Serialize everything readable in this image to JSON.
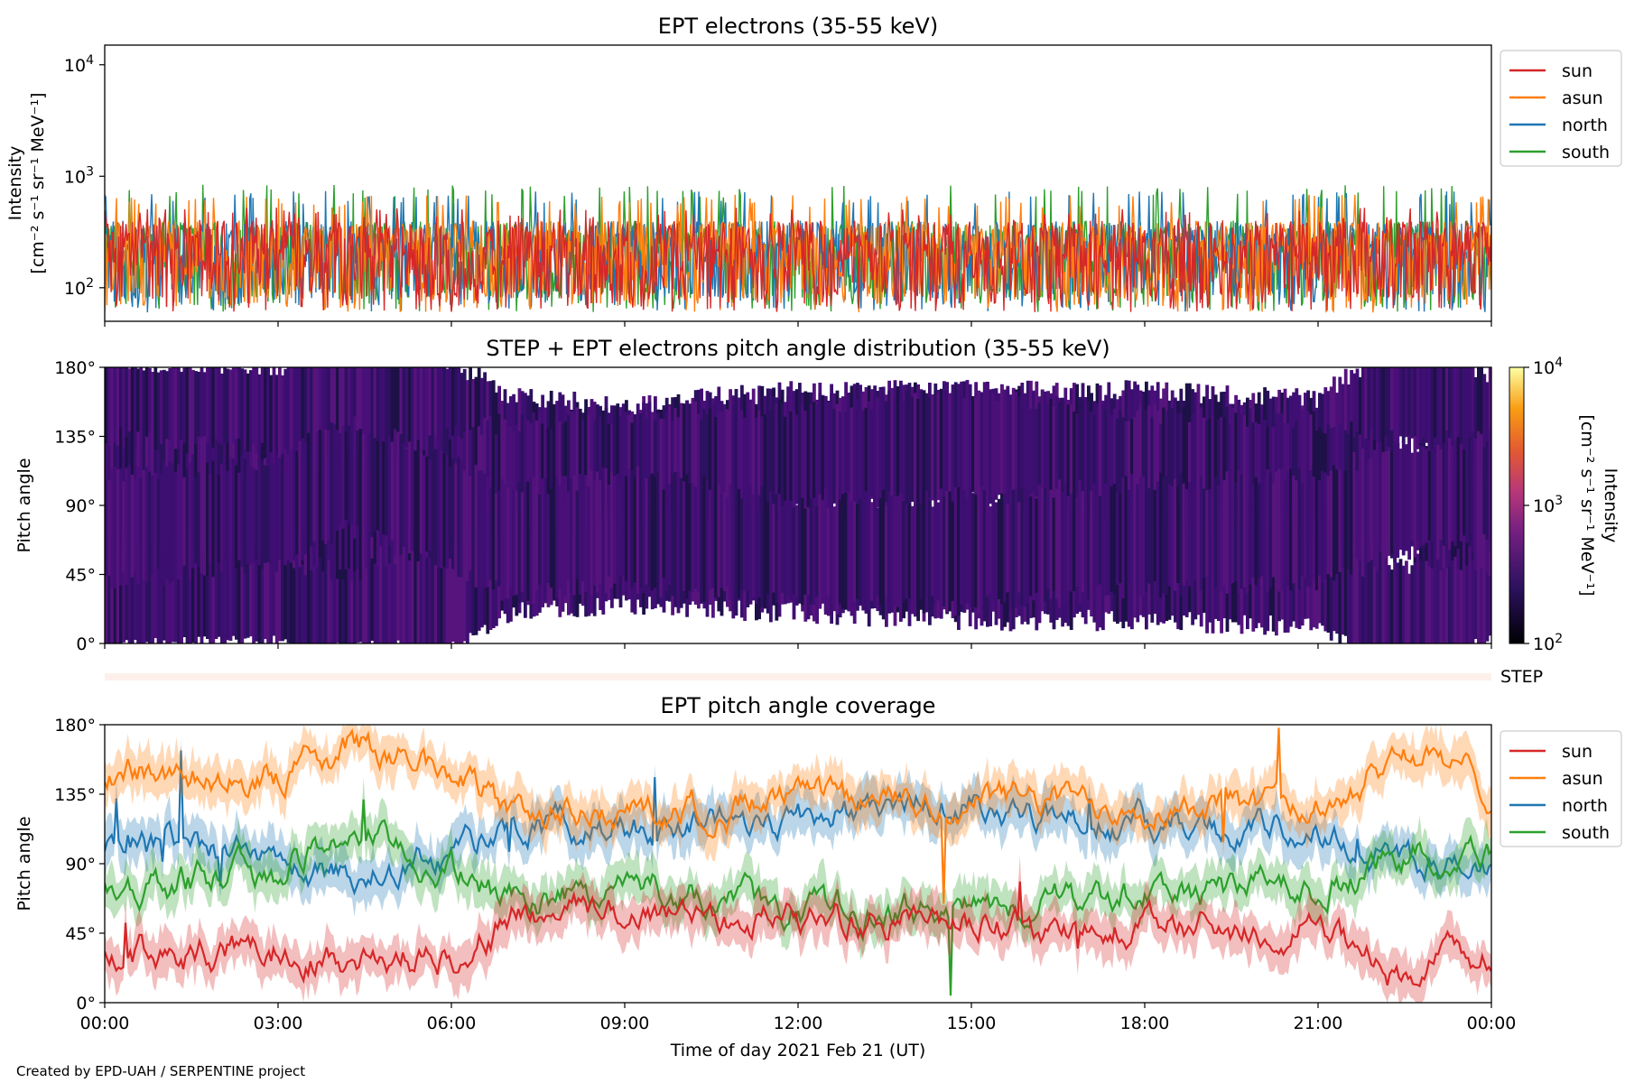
{
  "figure": {
    "credit": "Created by EPD-UAH / SERPENTINE project",
    "xlabel": "Time of day 2021 Feb 21 (UT)",
    "time_ticks": [
      "00:00",
      "03:00",
      "06:00",
      "09:00",
      "12:00",
      "15:00",
      "18:00",
      "21:00",
      "00:00"
    ]
  },
  "colors": {
    "sun": "#d62728",
    "asun": "#ff7f0e",
    "north": "#1f77b4",
    "south": "#2ca02c"
  },
  "chart_data": [
    {
      "type": "line",
      "title": "EPT electrons (35-55 keV)",
      "ylabel_line1": "Intensity",
      "ylabel_line2": "[cm⁻² s⁻¹ sr⁻¹ MeV⁻¹]",
      "yscale": "log",
      "ylim": [
        50,
        15000
      ],
      "yticks": [
        {
          "base": "10",
          "exp": "2",
          "value": 100
        },
        {
          "base": "10",
          "exp": "3",
          "value": 1000
        },
        {
          "base": "10",
          "exp": "4",
          "value": 10000
        }
      ],
      "xlim_hours": [
        0,
        24
      ],
      "legend": {
        "position": "outside-right-top",
        "entries": [
          "sun",
          "asun",
          "north",
          "south"
        ]
      },
      "series": [
        {
          "name": "sun",
          "typical_range": [
            60,
            500
          ]
        },
        {
          "name": "asun",
          "typical_range": [
            60,
            650
          ]
        },
        {
          "name": "north",
          "typical_range": [
            60,
            700
          ]
        },
        {
          "name": "south",
          "typical_range": [
            60,
            800
          ]
        }
      ]
    },
    {
      "type": "heatmap",
      "title": "STEP + EPT electrons pitch angle distribution (35-55 keV)",
      "ylabel": "Pitch angle",
      "ylim": [
        0,
        180
      ],
      "yticks": [
        "0°",
        "45°",
        "90°",
        "135°",
        "180°"
      ],
      "colorbar": {
        "label_line1": "Intensity",
        "label_line2": "[cm⁻² s⁻¹ sr⁻¹ MeV⁻¹]",
        "scale": "log",
        "range": [
          100,
          10000
        ],
        "ticks": [
          {
            "base": "10",
            "exp": "2"
          },
          {
            "base": "10",
            "exp": "3"
          },
          {
            "base": "10",
            "exp": "4"
          }
        ]
      }
    },
    {
      "type": "bar",
      "label": "STEP",
      "color": "#fdf0ea"
    },
    {
      "type": "line",
      "title": "EPT pitch angle coverage",
      "ylabel": "Pitch angle",
      "ylim": [
        0,
        180
      ],
      "yticks": [
        "0°",
        "45°",
        "90°",
        "135°",
        "180°"
      ],
      "legend": {
        "position": "outside-right-top",
        "entries": [
          "sun",
          "asun",
          "north",
          "south"
        ]
      },
      "series": [
        {
          "name": "sun",
          "x_hours": [
            0,
            3,
            4.2,
            6,
            7,
            9,
            12,
            15,
            18,
            21,
            22.5,
            24
          ],
          "y": [
            30,
            35,
            30,
            30,
            55,
            60,
            55,
            50,
            50,
            45,
            15,
            35
          ]
        },
        {
          "name": "asun",
          "x_hours": [
            0,
            3,
            4.2,
            6,
            7,
            9,
            12,
            15,
            18,
            21,
            22.5,
            24
          ],
          "y": [
            150,
            145,
            165,
            150,
            125,
            120,
            130,
            130,
            130,
            125,
            165,
            140
          ]
        },
        {
          "name": "north",
          "x_hours": [
            0,
            3,
            4.2,
            6,
            7,
            9,
            12,
            15,
            18,
            21,
            22.5,
            24
          ],
          "y": [
            100,
            90,
            80,
            100,
            110,
            115,
            120,
            130,
            115,
            110,
            95,
            80
          ]
        },
        {
          "name": "south",
          "x_hours": [
            0,
            3,
            4.2,
            6,
            7,
            9,
            12,
            15,
            18,
            21,
            22.5,
            24
          ],
          "y": [
            75,
            85,
            110,
            85,
            65,
            75,
            60,
            60,
            70,
            75,
            95,
            100
          ]
        }
      ]
    }
  ]
}
